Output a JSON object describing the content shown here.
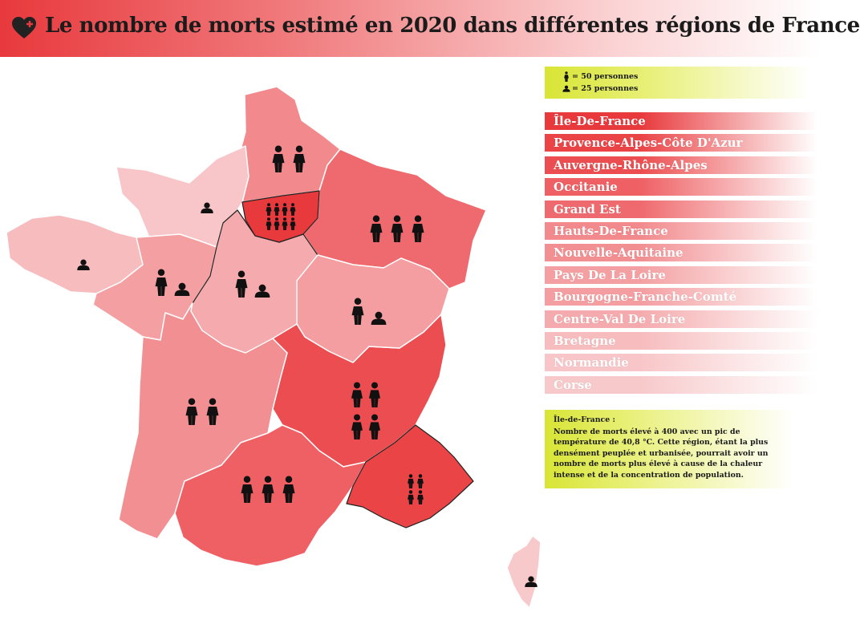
{
  "header": {
    "title": "Le nombre de morts estimé en 2020 dans différentes régions de France",
    "icon": "heart-plus-icon",
    "color": "#e8393d"
  },
  "legend": {
    "full_person": "= 50 personnes",
    "half_person": "= 25 personnes",
    "background_color": "#d8e535"
  },
  "regions_ranked": [
    {
      "name": "Île-De-France",
      "color": "#e8393d"
    },
    {
      "name": "Provence-Alpes-Côte D'Azur",
      "color": "#ea4447"
    },
    {
      "name": "Auvergne-Rhône-Alpes",
      "color": "#ec4d50"
    },
    {
      "name": "Occitanie",
      "color": "#ee6064"
    },
    {
      "name": "Grand Est",
      "color": "#ef6a6e"
    },
    {
      "name": "Hauts-De-France",
      "color": "#f28a8d"
    },
    {
      "name": "Nouvelle-Aquitaine",
      "color": "#f28f92"
    },
    {
      "name": "Pays De La Loire",
      "color": "#f4a0a2"
    },
    {
      "name": "Bourgogne-Franche-Comté",
      "color": "#f49ea1"
    },
    {
      "name": "Centre-Val De Loire",
      "color": "#f5abad"
    },
    {
      "name": "Bretagne",
      "color": "#f7bcbe"
    },
    {
      "name": "Normandie",
      "color": "#f8c6c8"
    },
    {
      "name": "Corse",
      "color": "#f8c9cb"
    }
  ],
  "note": {
    "title": "Île-de-France :",
    "body": "Nombre de morts élevé à 400 avec un pic de température de 40,8 °C. Cette région, étant la plus densément peuplée et urbanisée, pourrait avoir un nombre de morts plus élevé à cause de la chaleur intense et de la concentration de population."
  },
  "map_regions": [
    {
      "name": "Hauts-De-France",
      "persons_full": 2,
      "persons_half": 0,
      "color": "#f28a8d"
    },
    {
      "name": "Normandie",
      "persons_full": 0,
      "persons_half": 1,
      "color": "#f8c6c8"
    },
    {
      "name": "Île-De-France",
      "persons_full": 8,
      "persons_half": 0,
      "color": "#e8393d"
    },
    {
      "name": "Grand Est",
      "persons_full": 3,
      "persons_half": 0,
      "color": "#ef6a6e"
    },
    {
      "name": "Bretagne",
      "persons_full": 0,
      "persons_half": 1,
      "color": "#f7bcbe"
    },
    {
      "name": "Pays De La Loire",
      "persons_full": 1,
      "persons_half": 1,
      "color": "#f4a0a2"
    },
    {
      "name": "Centre-Val De Loire",
      "persons_full": 1,
      "persons_half": 1,
      "color": "#f5abad"
    },
    {
      "name": "Bourgogne-Franche-Comté",
      "persons_full": 1,
      "persons_half": 1,
      "color": "#f49ea1"
    },
    {
      "name": "Nouvelle-Aquitaine",
      "persons_full": 2,
      "persons_half": 0,
      "color": "#f28f92"
    },
    {
      "name": "Auvergne-Rhône-Alpes",
      "persons_full": 4,
      "persons_half": 0,
      "color": "#ec4d50"
    },
    {
      "name": "Occitanie",
      "persons_full": 3,
      "persons_half": 0,
      "color": "#ee6064"
    },
    {
      "name": "Provence-Alpes-Côte D'Azur",
      "persons_full": 4,
      "persons_half": 0,
      "color": "#ea4447"
    },
    {
      "name": "Corse",
      "persons_full": 0,
      "persons_half": 1,
      "color": "#f8c9cb"
    }
  ]
}
